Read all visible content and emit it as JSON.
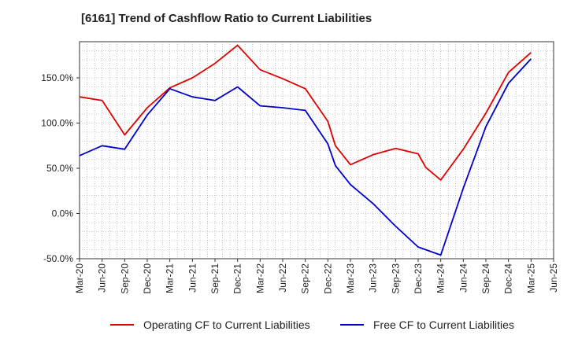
{
  "header": {
    "title": "[6161]  Trend of Cashflow Ratio to Current Liabilities"
  },
  "legend": {
    "items": [
      {
        "label": "Operating CF to Current Liabilities",
        "color": "#e00000"
      },
      {
        "label": "Free CF to Current Liabilities",
        "color": "#0000cc"
      }
    ]
  },
  "chart_data": {
    "type": "line",
    "title": "[6161]  Trend of Cashflow Ratio to Current Liabilities",
    "xlabel": "",
    "ylabel": "",
    "ylim": [
      -50,
      190
    ],
    "yticks": [
      -50,
      0,
      50,
      100,
      150
    ],
    "ytick_labels": [
      "-50.0%",
      "0.0%",
      "50.0%",
      "100.0%",
      "150.0%"
    ],
    "categories": [
      "Mar-20",
      "Jun-20",
      "Sep-20",
      "Dec-20",
      "Mar-21",
      "Jun-21",
      "Sep-21",
      "Dec-21",
      "Mar-22",
      "Jun-22",
      "Sep-22",
      "Dec-22",
      "Mar-23",
      "Jun-23",
      "Sep-23",
      "Dec-23",
      "Mar-24",
      "Jun-24",
      "Sep-24",
      "Dec-24",
      "Mar-25",
      "Jun-25"
    ],
    "grid": true,
    "legend_position": "bottom",
    "series": [
      {
        "name": "Operating CF to Current Liabilities",
        "color": "#e00000",
        "x": [
          "Mar-20",
          "Jun-20",
          "Sep-20",
          "Dec-20",
          "Mar-21",
          "Jun-21",
          "Sep-21",
          "Dec-21",
          "Mar-22",
          "Jun-22",
          "Sep-22",
          "Dec-22",
          "Jan-23",
          "Mar-23",
          "Jun-23",
          "Sep-23",
          "Dec-23",
          "Jan-24",
          "Mar-24",
          "Jun-24",
          "Sep-24",
          "Dec-24",
          "Mar-25"
        ],
        "values": [
          129,
          125,
          87,
          117,
          139,
          150,
          166,
          186,
          159,
          149,
          138,
          102,
          75,
          54,
          65,
          72,
          66,
          51,
          37,
          71,
          111,
          156,
          178
        ]
      },
      {
        "name": "Free CF to Current Liabilities",
        "color": "#0000cc",
        "x": [
          "Mar-20",
          "Jun-20",
          "Sep-20",
          "Dec-20",
          "Mar-21",
          "Jun-21",
          "Sep-21",
          "Dec-21",
          "Mar-22",
          "Jun-22",
          "Sep-22",
          "Dec-22",
          "Jan-23",
          "Mar-23",
          "Jun-23",
          "Sep-23",
          "Dec-23",
          "Mar-24",
          "Jun-24",
          "Sep-24",
          "Dec-24",
          "Mar-25"
        ],
        "values": [
          64,
          75,
          71,
          109,
          138,
          129,
          125,
          140,
          119,
          117,
          114,
          77,
          53,
          32,
          11,
          -14,
          -37,
          -46,
          28,
          96,
          144,
          171
        ]
      }
    ]
  }
}
